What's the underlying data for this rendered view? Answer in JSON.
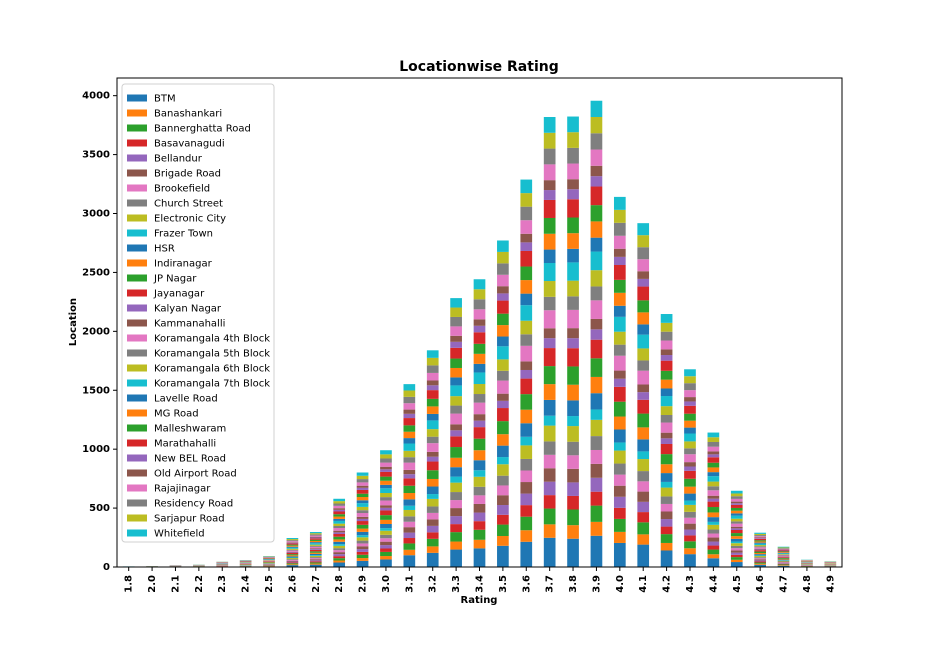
{
  "chart_data": {
    "type": "bar",
    "stacked": true,
    "title": "Locationwise Rating",
    "x_label": "Rating",
    "y_label": "Location",
    "categories": [
      "1.8",
      "2.0",
      "2.1",
      "2.2",
      "2.3",
      "2.4",
      "2.5",
      "2.6",
      "2.7",
      "2.8",
      "2.9",
      "3.0",
      "3.1",
      "3.2",
      "3.3",
      "3.4",
      "3.5",
      "3.6",
      "3.7",
      "3.8",
      "3.9",
      "4.0",
      "4.1",
      "4.2",
      "4.3",
      "4.4",
      "4.5",
      "4.6",
      "4.7",
      "4.8",
      "4.9"
    ],
    "ylim": [
      0,
      4150
    ],
    "yticks": [
      0,
      500,
      1000,
      1500,
      2000,
      2500,
      3000,
      3500,
      4000
    ],
    "grid": false,
    "legend": "upper left",
    "series": [
      {
        "name": "BTM",
        "color": "#1f77b4",
        "values": [
          1,
          1,
          1,
          2,
          3,
          4,
          6,
          16,
          20,
          38,
          52,
          64,
          100,
          120,
          148,
          158,
          180,
          214,
          248,
          240,
          265,
          204,
          190,
          140,
          109,
          74,
          42,
          19,
          11,
          4,
          3
        ]
      },
      {
        "name": "Banashankari",
        "color": "#ff7f0e",
        "values": [
          0,
          0,
          1,
          0,
          2,
          1,
          3,
          7,
          9,
          17,
          24,
          29,
          46,
          55,
          68,
          73,
          83,
          98,
          114,
          115,
          118,
          94,
          87,
          64,
          50,
          34,
          19,
          9,
          5,
          2,
          1
        ]
      },
      {
        "name": "Bannerghatta Road",
        "color": "#2ca02c",
        "values": [
          0,
          0,
          1,
          1,
          1,
          2,
          3,
          9,
          10,
          20,
          28,
          35,
          54,
          64,
          80,
          85,
          97,
          115,
          134,
          133,
          138,
          110,
          102,
          75,
          59,
          40,
          23,
          10,
          6,
          2,
          2
        ]
      },
      {
        "name": "Basavanagudi",
        "color": "#d62728",
        "values": [
          0,
          0,
          0,
          0,
          2,
          1,
          3,
          7,
          9,
          17,
          24,
          29,
          46,
          55,
          68,
          73,
          83,
          98,
          114,
          115,
          118,
          94,
          87,
          64,
          50,
          34,
          19,
          9,
          5,
          2,
          1
        ]
      },
      {
        "name": "Bellandur",
        "color": "#9467bd",
        "values": [
          0,
          0,
          1,
          0,
          2,
          1,
          3,
          7,
          9,
          17,
          24,
          29,
          46,
          55,
          68,
          73,
          83,
          98,
          114,
          115,
          118,
          94,
          87,
          64,
          50,
          34,
          19,
          9,
          5,
          2,
          1
        ]
      },
      {
        "name": "Brigade Road",
        "color": "#8c564b",
        "values": [
          0,
          0,
          0,
          1,
          2,
          1,
          3,
          7,
          9,
          17,
          24,
          29,
          46,
          55,
          68,
          73,
          83,
          98,
          114,
          115,
          118,
          94,
          87,
          64,
          50,
          34,
          19,
          9,
          5,
          2,
          1
        ]
      },
      {
        "name": "Brookefield",
        "color": "#e377c2",
        "values": [
          0,
          0,
          0,
          0,
          2,
          1,
          3,
          7,
          9,
          17,
          24,
          29,
          46,
          55,
          68,
          73,
          83,
          98,
          114,
          115,
          118,
          94,
          87,
          64,
          50,
          34,
          19,
          9,
          5,
          2,
          1
        ]
      },
      {
        "name": "Church Street",
        "color": "#7f7f7f",
        "values": [
          0,
          0,
          0,
          0,
          2,
          1,
          3,
          7,
          9,
          17,
          24,
          29,
          46,
          55,
          68,
          73,
          83,
          98,
          114,
          115,
          118,
          94,
          87,
          64,
          50,
          34,
          19,
          9,
          5,
          2,
          1
        ]
      },
      {
        "name": "Electronic City",
        "color": "#bcbd22",
        "values": [
          1,
          1,
          1,
          1,
          1,
          2,
          3,
          9,
          10,
          20,
          28,
          35,
          54,
          64,
          80,
          85,
          97,
          115,
          134,
          133,
          138,
          110,
          102,
          75,
          59,
          40,
          23,
          10,
          6,
          2,
          2
        ]
      },
      {
        "name": "Frazer Town",
        "color": "#17becf",
        "values": [
          0,
          0,
          0,
          0,
          1,
          2,
          2,
          5,
          7,
          14,
          18,
          22,
          36,
          41,
          51,
          55,
          61,
          73,
          84,
          85,
          88,
          69,
          65,
          48,
          37,
          25,
          14,
          6,
          4,
          1,
          1
        ]
      },
      {
        "name": "HSR",
        "color": "#1f77b4",
        "values": [
          0,
          0,
          1,
          1,
          1,
          2,
          3,
          9,
          10,
          20,
          28,
          35,
          54,
          64,
          80,
          85,
          97,
          115,
          134,
          133,
          138,
          110,
          102,
          75,
          59,
          40,
          23,
          10,
          6,
          2,
          2
        ]
      },
      {
        "name": "Indiranagar",
        "color": "#ff7f0e",
        "values": [
          0,
          0,
          0,
          1,
          1,
          2,
          3,
          9,
          10,
          20,
          28,
          35,
          54,
          64,
          80,
          85,
          97,
          115,
          134,
          133,
          138,
          110,
          102,
          75,
          59,
          40,
          23,
          10,
          6,
          2,
          2
        ]
      },
      {
        "name": "JP Nagar",
        "color": "#2ca02c",
        "values": [
          0,
          1,
          1,
          1,
          2,
          3,
          4,
          10,
          12,
          23,
          32,
          40,
          62,
          74,
          91,
          98,
          111,
          132,
          153,
          155,
          158,
          126,
          117,
          86,
          67,
          46,
          26,
          12,
          7,
          3,
          2
        ]
      },
      {
        "name": "Jayanagar",
        "color": "#d62728",
        "values": [
          0,
          1,
          1,
          1,
          2,
          3,
          4,
          10,
          12,
          23,
          32,
          40,
          62,
          74,
          91,
          98,
          111,
          132,
          153,
          155,
          158,
          126,
          117,
          86,
          67,
          46,
          26,
          12,
          7,
          3,
          2
        ]
      },
      {
        "name": "Kalyan Nagar",
        "color": "#9467bd",
        "values": [
          1,
          0,
          1,
          0,
          1,
          2,
          2,
          5,
          7,
          14,
          18,
          22,
          36,
          41,
          51,
          55,
          61,
          73,
          84,
          85,
          88,
          69,
          65,
          48,
          37,
          25,
          14,
          6,
          4,
          1,
          1
        ]
      },
      {
        "name": "Kammanahalli",
        "color": "#8c564b",
        "values": [
          0,
          1,
          0,
          0,
          1,
          2,
          2,
          5,
          7,
          14,
          18,
          22,
          36,
          41,
          51,
          55,
          61,
          73,
          84,
          85,
          88,
          69,
          65,
          48,
          37,
          25,
          14,
          6,
          4,
          1,
          1
        ]
      },
      {
        "name": "Koramangala 4th Block",
        "color": "#e377c2",
        "values": [
          0,
          0,
          1,
          1,
          2,
          3,
          4,
          10,
          12,
          23,
          32,
          40,
          62,
          74,
          91,
          98,
          111,
          132,
          153,
          155,
          158,
          126,
          117,
          86,
          67,
          46,
          26,
          12,
          7,
          3,
          2
        ]
      },
      {
        "name": "Koramangala 5th Block",
        "color": "#7f7f7f",
        "values": [
          0,
          0,
          0,
          0,
          2,
          1,
          3,
          7,
          9,
          17,
          24,
          29,
          46,
          55,
          68,
          73,
          83,
          98,
          114,
          115,
          118,
          94,
          87,
          64,
          50,
          34,
          19,
          9,
          5,
          2,
          1
        ]
      },
      {
        "name": "Koramangala 6th Block",
        "color": "#bcbd22",
        "values": [
          0,
          0,
          0,
          1,
          1,
          2,
          3,
          9,
          10,
          20,
          28,
          35,
          54,
          64,
          80,
          85,
          97,
          115,
          134,
          133,
          138,
          110,
          102,
          75,
          59,
          40,
          23,
          10,
          6,
          2,
          2
        ]
      },
      {
        "name": "Koramangala 7th Block",
        "color": "#17becf",
        "values": [
          0,
          0,
          1,
          1,
          2,
          3,
          4,
          10,
          12,
          23,
          32,
          40,
          62,
          74,
          91,
          98,
          111,
          132,
          153,
          155,
          158,
          126,
          117,
          86,
          67,
          46,
          26,
          12,
          7,
          3,
          2
        ]
      },
      {
        "name": "Lavelle Road",
        "color": "#1f77b4",
        "values": [
          0,
          0,
          0,
          1,
          2,
          1,
          3,
          7,
          9,
          17,
          24,
          29,
          46,
          55,
          68,
          73,
          83,
          98,
          114,
          115,
          118,
          94,
          87,
          64,
          50,
          34,
          19,
          9,
          5,
          2,
          1
        ]
      },
      {
        "name": "MG Road",
        "color": "#ff7f0e",
        "values": [
          0,
          0,
          1,
          1,
          1,
          2,
          3,
          9,
          10,
          20,
          28,
          35,
          54,
          64,
          80,
          85,
          97,
          115,
          134,
          133,
          138,
          110,
          102,
          75,
          59,
          40,
          23,
          10,
          6,
          2,
          2
        ]
      },
      {
        "name": "Malleshwaram",
        "color": "#2ca02c",
        "values": [
          0,
          0,
          0,
          1,
          1,
          2,
          3,
          9,
          10,
          20,
          28,
          35,
          54,
          64,
          80,
          85,
          97,
          115,
          134,
          133,
          138,
          110,
          102,
          75,
          59,
          40,
          23,
          10,
          6,
          2,
          2
        ]
      },
      {
        "name": "Marathahalli",
        "color": "#d62728",
        "values": [
          1,
          1,
          1,
          1,
          2,
          3,
          4,
          10,
          12,
          23,
          32,
          40,
          62,
          74,
          91,
          98,
          111,
          132,
          153,
          155,
          158,
          126,
          117,
          86,
          67,
          46,
          26,
          12,
          7,
          3,
          2
        ]
      },
      {
        "name": "New BEL Road",
        "color": "#9467bd",
        "values": [
          0,
          0,
          0,
          0,
          1,
          2,
          2,
          5,
          7,
          14,
          18,
          22,
          36,
          41,
          51,
          55,
          61,
          73,
          84,
          85,
          88,
          69,
          65,
          48,
          37,
          25,
          14,
          6,
          4,
          1,
          1
        ]
      },
      {
        "name": "Old Airport Road",
        "color": "#8c564b",
        "values": [
          0,
          0,
          0,
          0,
          1,
          2,
          2,
          5,
          7,
          14,
          18,
          22,
          36,
          41,
          51,
          55,
          61,
          73,
          84,
          85,
          88,
          69,
          65,
          48,
          37,
          25,
          14,
          6,
          4,
          1,
          1
        ]
      },
      {
        "name": "Rajajinagar",
        "color": "#e377c2",
        "values": [
          0,
          0,
          0,
          1,
          1,
          2,
          3,
          9,
          10,
          20,
          28,
          35,
          54,
          64,
          80,
          85,
          97,
          115,
          134,
          133,
          138,
          110,
          102,
          75,
          59,
          40,
          23,
          10,
          6,
          2,
          2
        ]
      },
      {
        "name": "Residency Road",
        "color": "#7f7f7f",
        "values": [
          0,
          0,
          1,
          1,
          1,
          2,
          3,
          9,
          10,
          20,
          28,
          35,
          54,
          64,
          80,
          85,
          97,
          115,
          134,
          133,
          138,
          110,
          102,
          75,
          59,
          40,
          23,
          10,
          6,
          2,
          2
        ]
      },
      {
        "name": "Sarjapur Road",
        "color": "#bcbd22",
        "values": [
          0,
          1,
          0,
          1,
          1,
          2,
          3,
          9,
          10,
          20,
          28,
          35,
          54,
          64,
          80,
          85,
          97,
          115,
          134,
          133,
          138,
          110,
          102,
          75,
          59,
          40,
          23,
          10,
          6,
          2,
          2
        ]
      },
      {
        "name": "Whitefield",
        "color": "#17becf",
        "values": [
          1,
          1,
          1,
          1,
          1,
          2,
          3,
          9,
          10,
          20,
          28,
          35,
          54,
          64,
          80,
          85,
          97,
          115,
          134,
          133,
          138,
          110,
          102,
          75,
          59,
          40,
          23,
          10,
          6,
          2,
          2
        ]
      }
    ]
  }
}
